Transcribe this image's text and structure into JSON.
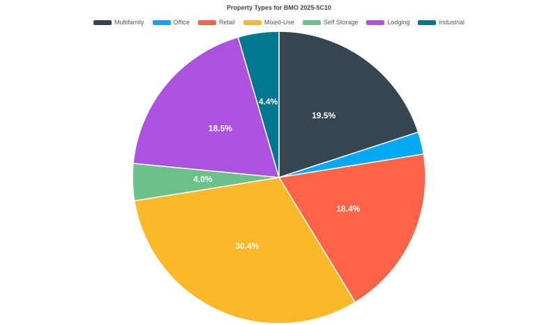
{
  "chart_data": {
    "type": "pie",
    "title": "Property Types for BMO 2025-5C10",
    "legend_position": "top",
    "slices": [
      {
        "name": "Multifamily",
        "value": 19.5,
        "color": "#36454f",
        "label": "19.5%"
      },
      {
        "name": "Office",
        "value": 2.4,
        "color": "#03a9f4",
        "label": ""
      },
      {
        "name": "Retail",
        "value": 18.4,
        "color": "#ff6347",
        "label": "18.4%"
      },
      {
        "name": "Mixed-Use",
        "value": 30.4,
        "color": "#fbb829",
        "label": "30.4%"
      },
      {
        "name": "Self Storage",
        "value": 4.0,
        "color": "#6bc18a",
        "label": "4.0%"
      },
      {
        "name": "Lodging",
        "value": 18.5,
        "color": "#ab52e0",
        "label": "18.5%"
      },
      {
        "name": "Industrial",
        "value": 4.4,
        "color": "#047790",
        "label": "4.4%"
      }
    ]
  }
}
